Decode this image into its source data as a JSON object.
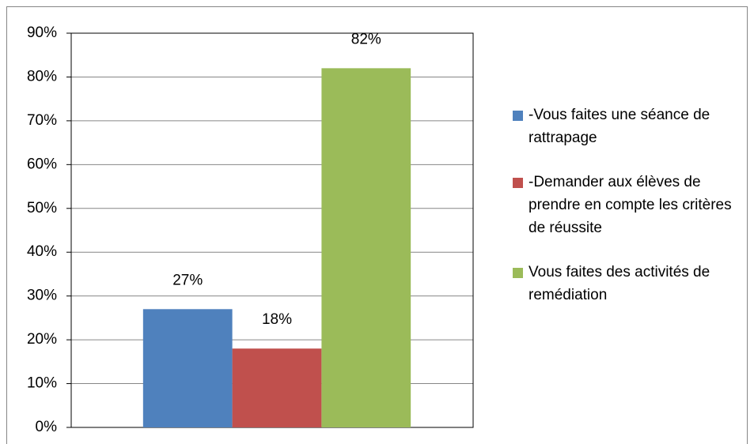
{
  "chart_data": {
    "type": "bar",
    "categories": [
      null
    ],
    "series": [
      {
        "name": "-Vous faites une séance de rattrapage",
        "color": "#4f81bd",
        "values": [
          27
        ],
        "value_labels": [
          "27%"
        ]
      },
      {
        "name": "-Demander aux élèves de prendre en compte les critères de réussite",
        "color": "#c0504d",
        "values": [
          18
        ],
        "value_labels": [
          "18%"
        ]
      },
      {
        "name": "Vous faites des activités de remédiation",
        "color": "#9bbb59",
        "values": [
          82
        ],
        "value_labels": [
          "82%"
        ]
      }
    ],
    "ylim": [
      0,
      90
    ],
    "yticks": [
      {
        "value": 0,
        "label": "0%"
      },
      {
        "value": 10,
        "label": "10%"
      },
      {
        "value": 20,
        "label": "20%"
      },
      {
        "value": 30,
        "label": "30%"
      },
      {
        "value": 40,
        "label": "40%"
      },
      {
        "value": 50,
        "label": "50%"
      },
      {
        "value": 60,
        "label": "60%"
      },
      {
        "value": 70,
        "label": "70%"
      },
      {
        "value": 80,
        "label": "80%"
      },
      {
        "value": 90,
        "label": "90%"
      }
    ],
    "grid": true,
    "legend": "right"
  }
}
